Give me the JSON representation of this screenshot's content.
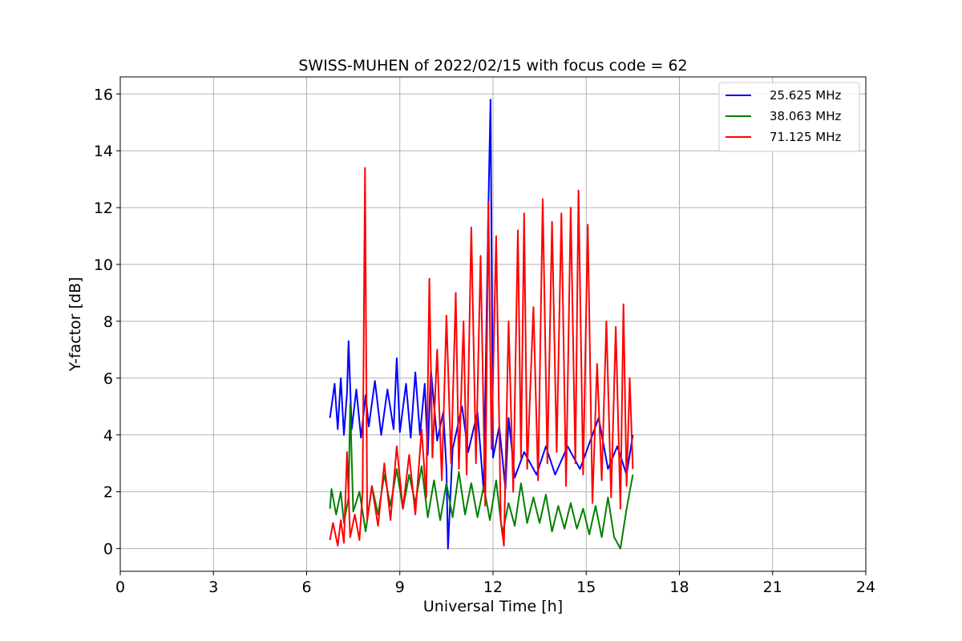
{
  "chart_data": {
    "type": "line",
    "title": "SWISS-MUHEN of 2022/02/15 with focus code = 62",
    "xlabel": "Universal Time [h]",
    "ylabel": "Y-factor [dB]",
    "xlim": [
      0,
      24
    ],
    "ylim": [
      -0.8,
      16.6
    ],
    "xticks": [
      0,
      3,
      6,
      9,
      12,
      15,
      18,
      21,
      24
    ],
    "yticks": [
      0,
      2,
      4,
      6,
      8,
      10,
      12,
      14,
      16
    ],
    "grid": true,
    "legend_position": "top-right",
    "series": [
      {
        "name": "25.625 MHz",
        "color": "#0000ff",
        "points": [
          [
            6.75,
            4.6
          ],
          [
            6.9,
            5.8
          ],
          [
            7.0,
            4.2
          ],
          [
            7.1,
            6.0
          ],
          [
            7.2,
            4.0
          ],
          [
            7.3,
            5.5
          ],
          [
            7.35,
            7.3
          ],
          [
            7.45,
            4.2
          ],
          [
            7.6,
            5.6
          ],
          [
            7.75,
            3.9
          ],
          [
            7.9,
            5.4
          ],
          [
            8.0,
            4.3
          ],
          [
            8.2,
            5.9
          ],
          [
            8.4,
            4.0
          ],
          [
            8.6,
            5.6
          ],
          [
            8.8,
            4.2
          ],
          [
            8.9,
            6.7
          ],
          [
            9.0,
            4.1
          ],
          [
            9.2,
            5.8
          ],
          [
            9.35,
            3.9
          ],
          [
            9.5,
            6.2
          ],
          [
            9.65,
            4.0
          ],
          [
            9.8,
            5.8
          ],
          [
            9.9,
            3.3
          ],
          [
            10.0,
            6.3
          ],
          [
            10.2,
            3.8
          ],
          [
            10.4,
            4.8
          ],
          [
            10.5,
            2.8
          ],
          [
            10.55,
            0.0
          ],
          [
            10.7,
            3.5
          ],
          [
            11.0,
            5.0
          ],
          [
            11.2,
            3.4
          ],
          [
            11.5,
            4.8
          ],
          [
            11.7,
            2.0
          ],
          [
            11.85,
            12.0
          ],
          [
            11.92,
            15.8
          ],
          [
            12.0,
            3.2
          ],
          [
            12.2,
            4.3
          ],
          [
            12.4,
            2.1
          ],
          [
            12.5,
            4.6
          ],
          [
            12.7,
            2.5
          ],
          [
            13.0,
            3.4
          ],
          [
            13.4,
            2.6
          ],
          [
            13.7,
            3.6
          ],
          [
            14.0,
            2.6
          ],
          [
            14.4,
            3.6
          ],
          [
            14.8,
            2.8
          ],
          [
            15.2,
            4.0
          ],
          [
            15.4,
            4.6
          ],
          [
            15.7,
            2.8
          ],
          [
            16.0,
            3.6
          ],
          [
            16.3,
            2.6
          ],
          [
            16.5,
            4.0
          ]
        ]
      },
      {
        "name": "38.063 MHz",
        "color": "#008000",
        "points": [
          [
            6.75,
            1.4
          ],
          [
            6.8,
            2.1
          ],
          [
            6.95,
            1.2
          ],
          [
            7.1,
            2.0
          ],
          [
            7.2,
            0.9
          ],
          [
            7.35,
            1.8
          ],
          [
            7.4,
            5.1
          ],
          [
            7.5,
            1.3
          ],
          [
            7.7,
            2.0
          ],
          [
            7.9,
            0.6
          ],
          [
            8.1,
            2.2
          ],
          [
            8.3,
            1.2
          ],
          [
            8.5,
            2.6
          ],
          [
            8.7,
            1.5
          ],
          [
            8.9,
            2.8
          ],
          [
            9.1,
            1.4
          ],
          [
            9.3,
            2.6
          ],
          [
            9.5,
            1.6
          ],
          [
            9.7,
            2.9
          ],
          [
            9.9,
            1.1
          ],
          [
            10.1,
            2.4
          ],
          [
            10.3,
            1.0
          ],
          [
            10.5,
            2.3
          ],
          [
            10.7,
            1.1
          ],
          [
            10.9,
            2.7
          ],
          [
            11.1,
            1.2
          ],
          [
            11.3,
            2.3
          ],
          [
            11.5,
            1.1
          ],
          [
            11.7,
            2.2
          ],
          [
            11.9,
            1.0
          ],
          [
            12.1,
            2.4
          ],
          [
            12.3,
            0.5
          ],
          [
            12.5,
            1.6
          ],
          [
            12.7,
            0.8
          ],
          [
            12.9,
            2.3
          ],
          [
            13.1,
            0.9
          ],
          [
            13.3,
            1.8
          ],
          [
            13.5,
            0.9
          ],
          [
            13.7,
            1.9
          ],
          [
            13.9,
            0.6
          ],
          [
            14.1,
            1.5
          ],
          [
            14.3,
            0.7
          ],
          [
            14.5,
            1.6
          ],
          [
            14.7,
            0.7
          ],
          [
            14.9,
            1.4
          ],
          [
            15.1,
            0.5
          ],
          [
            15.3,
            1.5
          ],
          [
            15.5,
            0.4
          ],
          [
            15.7,
            1.8
          ],
          [
            15.9,
            0.4
          ],
          [
            16.1,
            0.0
          ],
          [
            16.3,
            1.4
          ],
          [
            16.5,
            2.6
          ]
        ]
      },
      {
        "name": "71.125 MHz",
        "color": "#ff0000",
        "points": [
          [
            6.75,
            0.3
          ],
          [
            6.85,
            0.9
          ],
          [
            7.0,
            0.1
          ],
          [
            7.1,
            1.0
          ],
          [
            7.2,
            0.2
          ],
          [
            7.3,
            3.4
          ],
          [
            7.4,
            0.4
          ],
          [
            7.55,
            1.2
          ],
          [
            7.7,
            0.3
          ],
          [
            7.8,
            2.0
          ],
          [
            7.88,
            13.4
          ],
          [
            7.95,
            1.0
          ],
          [
            8.1,
            2.2
          ],
          [
            8.3,
            0.8
          ],
          [
            8.5,
            3.0
          ],
          [
            8.7,
            1.0
          ],
          [
            8.9,
            3.6
          ],
          [
            9.1,
            1.4
          ],
          [
            9.3,
            3.3
          ],
          [
            9.5,
            1.2
          ],
          [
            9.7,
            4.2
          ],
          [
            9.85,
            1.8
          ],
          [
            9.95,
            9.5
          ],
          [
            10.05,
            3.2
          ],
          [
            10.2,
            7.0
          ],
          [
            10.35,
            2.4
          ],
          [
            10.5,
            8.2
          ],
          [
            10.65,
            3.0
          ],
          [
            10.8,
            9.0
          ],
          [
            10.9,
            2.8
          ],
          [
            11.05,
            8.0
          ],
          [
            11.15,
            2.6
          ],
          [
            11.3,
            11.3
          ],
          [
            11.45,
            3.0
          ],
          [
            11.6,
            10.3
          ],
          [
            11.75,
            1.5
          ],
          [
            11.85,
            12.2
          ],
          [
            11.95,
            3.5
          ],
          [
            12.1,
            11.0
          ],
          [
            12.25,
            1.0
          ],
          [
            12.35,
            0.1
          ],
          [
            12.5,
            8.0
          ],
          [
            12.65,
            2.0
          ],
          [
            12.8,
            11.2
          ],
          [
            12.9,
            3.2
          ],
          [
            13.0,
            11.8
          ],
          [
            13.1,
            2.8
          ],
          [
            13.3,
            8.5
          ],
          [
            13.45,
            2.4
          ],
          [
            13.6,
            12.3
          ],
          [
            13.75,
            3.0
          ],
          [
            13.9,
            11.5
          ],
          [
            14.05,
            3.4
          ],
          [
            14.2,
            11.8
          ],
          [
            14.35,
            2.2
          ],
          [
            14.5,
            12.0
          ],
          [
            14.65,
            3.0
          ],
          [
            14.75,
            12.6
          ],
          [
            14.9,
            2.6
          ],
          [
            15.05,
            11.4
          ],
          [
            15.2,
            1.6
          ],
          [
            15.35,
            6.5
          ],
          [
            15.5,
            2.4
          ],
          [
            15.65,
            8.0
          ],
          [
            15.8,
            1.8
          ],
          [
            15.95,
            7.8
          ],
          [
            16.1,
            1.4
          ],
          [
            16.2,
            8.6
          ],
          [
            16.3,
            2.2
          ],
          [
            16.4,
            6.0
          ],
          [
            16.5,
            2.8
          ]
        ]
      }
    ]
  }
}
